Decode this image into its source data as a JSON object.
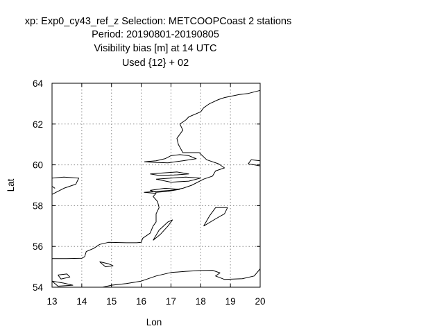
{
  "chart_data": {
    "type": "map",
    "title_lines": [
      "xp: Exp0_cy43_ref_z   Selection: METCOOPCoast      2 stations",
      "Period: 20190801-20190805",
      "Visibility bias [m] at  14 UTC",
      "Used {12} + 02"
    ],
    "xlabel": "Lon",
    "ylabel": "Lat",
    "xlim": [
      13,
      20
    ],
    "ylim": [
      54,
      64
    ],
    "x_ticks": [
      13,
      14,
      15,
      16,
      17,
      18,
      19,
      20
    ],
    "y_ticks": [
      54,
      56,
      58,
      60,
      62,
      64
    ],
    "grid": true,
    "grid_style": "dotted",
    "coastlines": [
      [
        [
          13.0,
          55.4
        ],
        [
          13.5,
          55.4
        ],
        [
          14.0,
          55.42
        ],
        [
          14.1,
          55.5
        ],
        [
          14.15,
          55.75
        ],
        [
          14.4,
          55.9
        ],
        [
          14.6,
          56.1
        ],
        [
          14.9,
          56.2
        ],
        [
          15.5,
          56.18
        ],
        [
          15.85,
          56.18
        ],
        [
          16.0,
          56.2
        ],
        [
          16.05,
          56.4
        ],
        [
          16.3,
          56.65
        ],
        [
          16.4,
          57.0
        ],
        [
          16.5,
          57.2
        ],
        [
          16.5,
          57.6
        ],
        [
          16.6,
          57.9
        ],
        [
          16.55,
          58.2
        ],
        [
          16.4,
          58.45
        ],
        [
          16.5,
          58.6
        ],
        [
          16.1,
          58.65
        ],
        [
          16.55,
          58.7
        ],
        [
          17.0,
          58.75
        ],
        [
          17.4,
          58.85
        ],
        [
          17.7,
          59.0
        ],
        [
          18.1,
          59.3
        ],
        [
          18.4,
          59.45
        ],
        [
          18.5,
          59.7
        ],
        [
          18.8,
          59.85
        ],
        [
          18.6,
          60.05
        ],
        [
          18.2,
          60.25
        ],
        [
          17.95,
          60.6
        ],
        [
          17.4,
          60.6
        ],
        [
          17.25,
          61.0
        ],
        [
          17.2,
          61.3
        ],
        [
          17.4,
          61.7
        ],
        [
          17.3,
          62.0
        ],
        [
          17.5,
          62.2
        ],
        [
          17.6,
          62.35
        ],
        [
          18.0,
          62.6
        ],
        [
          18.1,
          62.8
        ],
        [
          18.3,
          63.0
        ],
        [
          18.6,
          63.2
        ],
        [
          18.8,
          63.3
        ],
        [
          19.3,
          63.45
        ],
        [
          19.6,
          63.5
        ],
        [
          20.0,
          63.65
        ]
      ],
      [
        [
          16.0,
          54.3
        ],
        [
          16.5,
          54.55
        ],
        [
          17.0,
          54.72
        ],
        [
          17.5,
          54.78
        ],
        [
          18.0,
          54.82
        ],
        [
          18.4,
          54.83
        ],
        [
          18.65,
          54.7
        ],
        [
          18.5,
          54.55
        ],
        [
          18.8,
          54.38
        ],
        [
          19.4,
          54.42
        ],
        [
          19.8,
          54.55
        ],
        [
          20.0,
          54.9
        ]
      ],
      [
        [
          14.7,
          54.0
        ],
        [
          15.0,
          54.1
        ],
        [
          15.5,
          54.18
        ],
        [
          16.0,
          54.3
        ]
      ],
      [
        [
          16.1,
          60.15
        ],
        [
          16.5,
          60.2
        ],
        [
          16.8,
          60.3
        ],
        [
          17.0,
          60.45
        ],
        [
          17.3,
          60.5
        ],
        [
          17.6,
          60.45
        ],
        [
          17.85,
          60.3
        ],
        [
          17.4,
          60.2
        ],
        [
          16.9,
          60.1
        ],
        [
          16.5,
          60.12
        ],
        [
          16.1,
          60.15
        ]
      ],
      [
        [
          16.3,
          59.55
        ],
        [
          16.7,
          59.6
        ],
        [
          17.2,
          59.65
        ],
        [
          17.6,
          59.55
        ],
        [
          17.1,
          59.5
        ],
        [
          16.6,
          59.48
        ],
        [
          16.3,
          59.55
        ]
      ],
      [
        [
          16.5,
          59.3
        ],
        [
          17.0,
          59.35
        ],
        [
          17.5,
          59.4
        ],
        [
          18.0,
          59.35
        ],
        [
          17.6,
          59.2
        ],
        [
          17.0,
          59.15
        ],
        [
          16.5,
          59.3
        ]
      ],
      [
        [
          16.3,
          58.75
        ],
        [
          16.8,
          58.85
        ],
        [
          17.3,
          58.8
        ],
        [
          16.9,
          58.7
        ],
        [
          16.5,
          58.65
        ],
        [
          16.3,
          58.75
        ]
      ],
      [
        [
          16.4,
          56.3
        ],
        [
          16.65,
          56.6
        ],
        [
          16.9,
          57.0
        ],
        [
          17.05,
          57.3
        ],
        [
          16.9,
          57.2
        ],
        [
          16.6,
          56.8
        ],
        [
          16.4,
          56.3
        ]
      ],
      [
        [
          18.1,
          57.0
        ],
        [
          18.5,
          57.35
        ],
        [
          18.8,
          57.6
        ],
        [
          18.9,
          57.9
        ],
        [
          18.5,
          57.9
        ],
        [
          18.3,
          57.5
        ],
        [
          18.1,
          57.0
        ]
      ],
      [
        [
          14.6,
          55.25
        ],
        [
          14.9,
          55.15
        ],
        [
          15.05,
          55.05
        ],
        [
          14.8,
          55.0
        ],
        [
          14.6,
          55.25
        ]
      ],
      [
        [
          13.2,
          54.6
        ],
        [
          13.5,
          54.65
        ],
        [
          13.6,
          54.5
        ],
        [
          13.3,
          54.4
        ],
        [
          13.2,
          54.6
        ]
      ],
      [
        [
          13.0,
          54.3
        ],
        [
          13.4,
          54.2
        ],
        [
          13.7,
          54.1
        ],
        [
          13.2,
          54.05
        ],
        [
          13.0,
          54.3
        ]
      ],
      [
        [
          13.0,
          59.35
        ],
        [
          13.4,
          59.4
        ],
        [
          13.9,
          59.35
        ],
        [
          13.8,
          59.05
        ],
        [
          13.4,
          58.85
        ],
        [
          13.0,
          58.55
        ]
      ],
      [
        [
          13.0,
          58.95
        ],
        [
          13.1,
          58.85
        ]
      ],
      [
        [
          20.0,
          60.2
        ],
        [
          19.7,
          60.25
        ],
        [
          19.6,
          60.05
        ],
        [
          20.0,
          59.95
        ]
      ]
    ]
  }
}
